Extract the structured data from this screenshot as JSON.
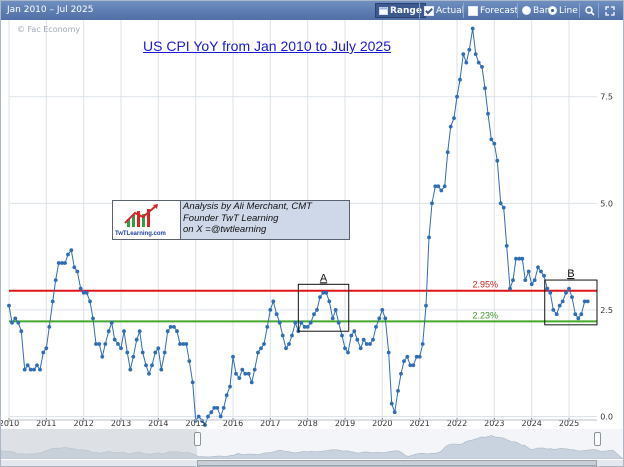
{
  "toolbar": {
    "range_text": "Jan 2010 – Jul 2025",
    "range_button": "Range",
    "actual_label": "Actual",
    "forecast_label": "Forecast",
    "bar_label": "Bar",
    "line_label": "Line",
    "icons": [
      "calendar-icon",
      "search-icon",
      "expand-icon"
    ]
  },
  "watermark": "© Fac Economy",
  "title": "US CPI YoY from Jan 2010 to July 2025",
  "info_box": {
    "logo_text": "TwTLearning.com",
    "lines": [
      "Analysis by Ali Merchant, CMT",
      "Founder TwT Learning",
      "on X =@twtlearning"
    ]
  },
  "colors": {
    "series": "#2f6db5",
    "line_295": "#e0131b",
    "line_223": "#46a82b",
    "label_295": "#d81b1b",
    "label_223": "#3d9a25",
    "grid": "#dde3ea"
  },
  "chart_data": {
    "type": "line",
    "title": "US CPI YoY from Jan 2010 to July 2025",
    "xlabel": "",
    "ylabel": "",
    "ylim": [
      -0.2,
      9.3
    ],
    "grid": true,
    "x_tick_labels": [
      "2010",
      "2011",
      "2012",
      "2013",
      "2014",
      "2015",
      "2016",
      "2017",
      "2018",
      "2019",
      "2020",
      "2021",
      "2022",
      "2023",
      "2024",
      "2025"
    ],
    "y_ticks": [
      0.0,
      2.5,
      5.0,
      7.5
    ],
    "y_tick_labels": [
      "0.0",
      "2.5",
      "5.0",
      "7.5"
    ],
    "hlines": [
      {
        "value": 2.95,
        "label": "2.95%"
      },
      {
        "value": 2.23,
        "label": "2.23%"
      }
    ],
    "boxes": [
      {
        "label": "A",
        "x0": 2017.75,
        "x1": 2019.1,
        "y0": 2.0,
        "y1": 3.1
      },
      {
        "label": "B",
        "x0": 2024.35,
        "x1": 2025.75,
        "y0": 2.15,
        "y1": 3.2
      }
    ],
    "series": [
      {
        "x": [
          2010.0,
          2010.08,
          2010.17,
          2010.25,
          2010.33,
          2010.42,
          2010.5,
          2010.58,
          2010.67,
          2010.75,
          2010.83,
          2010.92,
          2011.0,
          2011.08,
          2011.17,
          2011.25,
          2011.33,
          2011.42,
          2011.5,
          2011.58,
          2011.67,
          2011.75,
          2011.83,
          2011.92,
          2012.0,
          2012.08,
          2012.17,
          2012.25,
          2012.33,
          2012.42,
          2012.5,
          2012.58,
          2012.67,
          2012.75,
          2012.83,
          2012.92,
          2013.0,
          2013.08,
          2013.17,
          2013.25,
          2013.33,
          2013.42,
          2013.5,
          2013.58,
          2013.67,
          2013.75,
          2013.83,
          2013.92,
          2014.0,
          2014.08,
          2014.17,
          2014.25,
          2014.33,
          2014.42,
          2014.5,
          2014.58,
          2014.67,
          2014.75,
          2014.83,
          2014.92,
          2015.0,
          2015.08,
          2015.17,
          2015.25,
          2015.33,
          2015.42,
          2015.5,
          2015.58,
          2015.67,
          2015.75,
          2015.83,
          2015.92,
          2016.0,
          2016.08,
          2016.17,
          2016.25,
          2016.33,
          2016.42,
          2016.5,
          2016.58,
          2016.67,
          2016.75,
          2016.83,
          2016.92,
          2017.0,
          2017.08,
          2017.17,
          2017.25,
          2017.33,
          2017.42,
          2017.5,
          2017.58,
          2017.67,
          2017.75,
          2017.83,
          2017.92,
          2018.0,
          2018.08,
          2018.17,
          2018.25,
          2018.33,
          2018.42,
          2018.5,
          2018.58,
          2018.67,
          2018.75,
          2018.83,
          2018.92,
          2019.0,
          2019.08,
          2019.17,
          2019.25,
          2019.33,
          2019.42,
          2019.5,
          2019.58,
          2019.67,
          2019.75,
          2019.83,
          2019.92,
          2020.0,
          2020.08,
          2020.17,
          2020.25,
          2020.33,
          2020.42,
          2020.5,
          2020.58,
          2020.67,
          2020.75,
          2020.83,
          2020.92,
          2021.0,
          2021.08,
          2021.17,
          2021.25,
          2021.33,
          2021.42,
          2021.5,
          2021.58,
          2021.67,
          2021.75,
          2021.83,
          2021.92,
          2022.0,
          2022.08,
          2022.17,
          2022.25,
          2022.33,
          2022.42,
          2022.5,
          2022.58,
          2022.67,
          2022.75,
          2022.83,
          2022.92,
          2023.0,
          2023.08,
          2023.17,
          2023.25,
          2023.33,
          2023.42,
          2023.5,
          2023.58,
          2023.67,
          2023.75,
          2023.83,
          2023.92,
          2024.0,
          2024.08,
          2024.17,
          2024.25,
          2024.33,
          2024.42,
          2024.5,
          2024.58,
          2024.67,
          2024.75,
          2024.83,
          2024.92,
          2025.0,
          2025.08,
          2025.17,
          2025.25,
          2025.33,
          2025.42,
          2025.5
        ],
        "values": [
          2.6,
          2.2,
          2.3,
          2.2,
          2.0,
          1.1,
          1.2,
          1.1,
          1.1,
          1.2,
          1.1,
          1.5,
          1.6,
          2.1,
          2.7,
          3.2,
          3.6,
          3.6,
          3.6,
          3.8,
          3.9,
          3.5,
          3.4,
          3.0,
          2.9,
          2.9,
          2.7,
          2.3,
          1.7,
          1.7,
          1.4,
          1.7,
          2.0,
          2.2,
          1.8,
          1.7,
          1.6,
          2.0,
          1.5,
          1.1,
          1.4,
          1.8,
          2.0,
          1.5,
          1.2,
          1.0,
          1.2,
          1.5,
          1.6,
          1.1,
          1.5,
          2.0,
          2.1,
          2.1,
          2.0,
          1.7,
          1.7,
          1.7,
          1.3,
          0.8,
          -0.1,
          0.0,
          -0.1,
          -0.2,
          0.0,
          0.1,
          0.2,
          0.2,
          0.0,
          0.2,
          0.5,
          0.7,
          1.4,
          1.0,
          0.9,
          1.1,
          1.0,
          1.0,
          0.8,
          1.1,
          1.5,
          1.6,
          1.7,
          2.1,
          2.5,
          2.7,
          2.4,
          2.2,
          1.9,
          1.6,
          1.7,
          1.9,
          2.2,
          2.0,
          2.2,
          2.1,
          2.1,
          2.2,
          2.4,
          2.5,
          2.8,
          2.9,
          2.9,
          2.7,
          2.3,
          2.5,
          2.2,
          1.9,
          1.6,
          1.5,
          1.9,
          2.0,
          1.8,
          1.6,
          1.8,
          1.7,
          1.7,
          1.8,
          2.1,
          2.3,
          2.5,
          2.3,
          1.5,
          0.3,
          0.1,
          0.6,
          1.0,
          1.3,
          1.4,
          1.2,
          1.2,
          1.4,
          1.4,
          1.7,
          2.6,
          4.2,
          5.0,
          5.4,
          5.4,
          5.3,
          5.4,
          6.2,
          6.8,
          7.0,
          7.5,
          7.9,
          8.5,
          8.3,
          8.6,
          9.1,
          8.5,
          8.3,
          8.2,
          7.7,
          7.1,
          6.5,
          6.4,
          6.0,
          5.0,
          4.9,
          4.0,
          3.0,
          3.2,
          3.7,
          3.7,
          3.7,
          3.2,
          3.4,
          3.1,
          3.2,
          3.5,
          3.4,
          3.3,
          3.0,
          2.9,
          2.5,
          2.4,
          2.6,
          2.7,
          2.9,
          3.0,
          2.8,
          2.4,
          2.3,
          2.4,
          2.7,
          2.7
        ]
      }
    ]
  }
}
